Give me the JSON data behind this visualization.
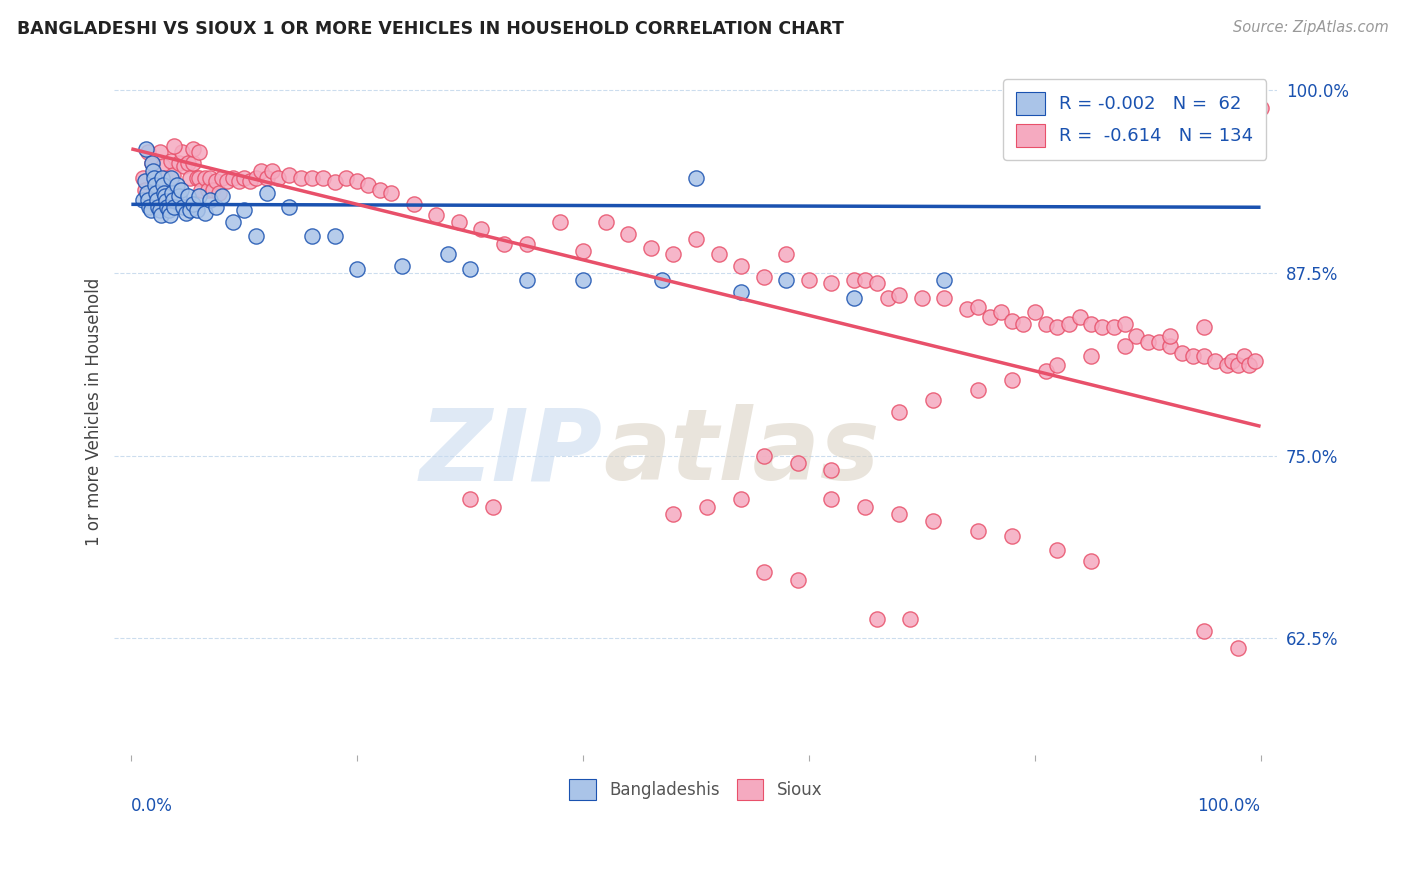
{
  "title": "BANGLADESHI VS SIOUX 1 OR MORE VEHICLES IN HOUSEHOLD CORRELATION CHART",
  "source": "Source: ZipAtlas.com",
  "ylabel": "1 or more Vehicles in Household",
  "ylim": [
    0.545,
    1.015
  ],
  "xlim": [
    -0.015,
    1.015
  ],
  "yticks": [
    0.625,
    0.75,
    0.875,
    1.0
  ],
  "ytick_labels": [
    "62.5%",
    "75.0%",
    "87.5%",
    "100.0%"
  ],
  "blue_color": "#aac4e8",
  "pink_color": "#f5aac0",
  "blue_line_color": "#1a52b0",
  "pink_line_color": "#e8506a",
  "background_color": "#ffffff",
  "blue_trend_y0": 0.922,
  "blue_trend_y1": 0.92,
  "pink_trend_y0": 0.96,
  "pink_trend_y1": 0.77,
  "blue_x": [
    0.01,
    0.012,
    0.013,
    0.014,
    0.015,
    0.016,
    0.017,
    0.018,
    0.019,
    0.02,
    0.021,
    0.022,
    0.023,
    0.024,
    0.025,
    0.026,
    0.027,
    0.028,
    0.029,
    0.03,
    0.031,
    0.032,
    0.033,
    0.034,
    0.035,
    0.036,
    0.037,
    0.038,
    0.04,
    0.042,
    0.044,
    0.046,
    0.048,
    0.05,
    0.052,
    0.055,
    0.058,
    0.06,
    0.065,
    0.07,
    0.075,
    0.08,
    0.09,
    0.1,
    0.11,
    0.12,
    0.14,
    0.16,
    0.18,
    0.2,
    0.24,
    0.28,
    0.3,
    0.35,
    0.4,
    0.47,
    0.5,
    0.54,
    0.58,
    0.64,
    0.72,
    0.99
  ],
  "blue_y": [
    0.925,
    0.938,
    0.96,
    0.93,
    0.925,
    0.92,
    0.918,
    0.95,
    0.945,
    0.94,
    0.935,
    0.93,
    0.925,
    0.92,
    0.918,
    0.915,
    0.94,
    0.935,
    0.93,
    0.928,
    0.924,
    0.92,
    0.918,
    0.915,
    0.94,
    0.93,
    0.925,
    0.92,
    0.935,
    0.928,
    0.932,
    0.92,
    0.916,
    0.928,
    0.918,
    0.922,
    0.918,
    0.928,
    0.916,
    0.925,
    0.92,
    0.928,
    0.91,
    0.918,
    0.9,
    0.93,
    0.92,
    0.9,
    0.9,
    0.878,
    0.88,
    0.888,
    0.878,
    0.87,
    0.87,
    0.87,
    0.94,
    0.862,
    0.87,
    0.858,
    0.87,
    0.99
  ],
  "pink_x": [
    0.01,
    0.012,
    0.015,
    0.018,
    0.02,
    0.022,
    0.025,
    0.028,
    0.03,
    0.032,
    0.035,
    0.037,
    0.04,
    0.042,
    0.045,
    0.047,
    0.05,
    0.052,
    0.055,
    0.058,
    0.06,
    0.062,
    0.065,
    0.068,
    0.07,
    0.072,
    0.075,
    0.078,
    0.08,
    0.085,
    0.09,
    0.095,
    0.1,
    0.105,
    0.11,
    0.115,
    0.12,
    0.125,
    0.13,
    0.14,
    0.15,
    0.16,
    0.17,
    0.18,
    0.19,
    0.2,
    0.21,
    0.22,
    0.23,
    0.25,
    0.27,
    0.29,
    0.31,
    0.33,
    0.35,
    0.38,
    0.4,
    0.42,
    0.44,
    0.46,
    0.48,
    0.5,
    0.52,
    0.54,
    0.56,
    0.58,
    0.6,
    0.62,
    0.64,
    0.65,
    0.66,
    0.67,
    0.68,
    0.7,
    0.72,
    0.74,
    0.75,
    0.76,
    0.77,
    0.78,
    0.79,
    0.8,
    0.81,
    0.82,
    0.83,
    0.84,
    0.85,
    0.86,
    0.87,
    0.88,
    0.89,
    0.9,
    0.91,
    0.92,
    0.93,
    0.94,
    0.95,
    0.96,
    0.97,
    0.975,
    0.98,
    0.985,
    0.99,
    0.995,
    1.0,
    0.055,
    0.06,
    0.038,
    0.48,
    0.51,
    0.54,
    0.62,
    0.65,
    0.68,
    0.71,
    0.75,
    0.78,
    0.82,
    0.85,
    0.56,
    0.59,
    0.62,
    0.81,
    0.85,
    0.88,
    0.92,
    0.95,
    0.68,
    0.71,
    0.75,
    0.78,
    0.82,
    0.95,
    0.98,
    0.3,
    0.32,
    0.56,
    0.59,
    0.66,
    0.69
  ],
  "pink_y": [
    0.94,
    0.932,
    0.958,
    0.95,
    0.942,
    0.935,
    0.958,
    0.948,
    0.94,
    0.922,
    0.952,
    0.942,
    0.932,
    0.95,
    0.958,
    0.948,
    0.95,
    0.94,
    0.95,
    0.94,
    0.94,
    0.932,
    0.94,
    0.932,
    0.94,
    0.932,
    0.938,
    0.93,
    0.94,
    0.938,
    0.94,
    0.938,
    0.94,
    0.938,
    0.94,
    0.945,
    0.94,
    0.945,
    0.94,
    0.942,
    0.94,
    0.94,
    0.94,
    0.937,
    0.94,
    0.938,
    0.935,
    0.932,
    0.93,
    0.922,
    0.915,
    0.91,
    0.905,
    0.895,
    0.895,
    0.91,
    0.89,
    0.91,
    0.902,
    0.892,
    0.888,
    0.898,
    0.888,
    0.88,
    0.872,
    0.888,
    0.87,
    0.868,
    0.87,
    0.87,
    0.868,
    0.858,
    0.86,
    0.858,
    0.858,
    0.85,
    0.852,
    0.845,
    0.848,
    0.842,
    0.84,
    0.848,
    0.84,
    0.838,
    0.84,
    0.845,
    0.84,
    0.838,
    0.838,
    0.84,
    0.832,
    0.828,
    0.828,
    0.825,
    0.82,
    0.818,
    0.818,
    0.815,
    0.812,
    0.815,
    0.812,
    0.818,
    0.812,
    0.815,
    0.988,
    0.96,
    0.958,
    0.962,
    0.71,
    0.715,
    0.72,
    0.72,
    0.715,
    0.71,
    0.705,
    0.698,
    0.695,
    0.685,
    0.678,
    0.75,
    0.745,
    0.74,
    0.808,
    0.818,
    0.825,
    0.832,
    0.838,
    0.78,
    0.788,
    0.795,
    0.802,
    0.812,
    0.63,
    0.618,
    0.72,
    0.715,
    0.67,
    0.665,
    0.638,
    0.638
  ]
}
